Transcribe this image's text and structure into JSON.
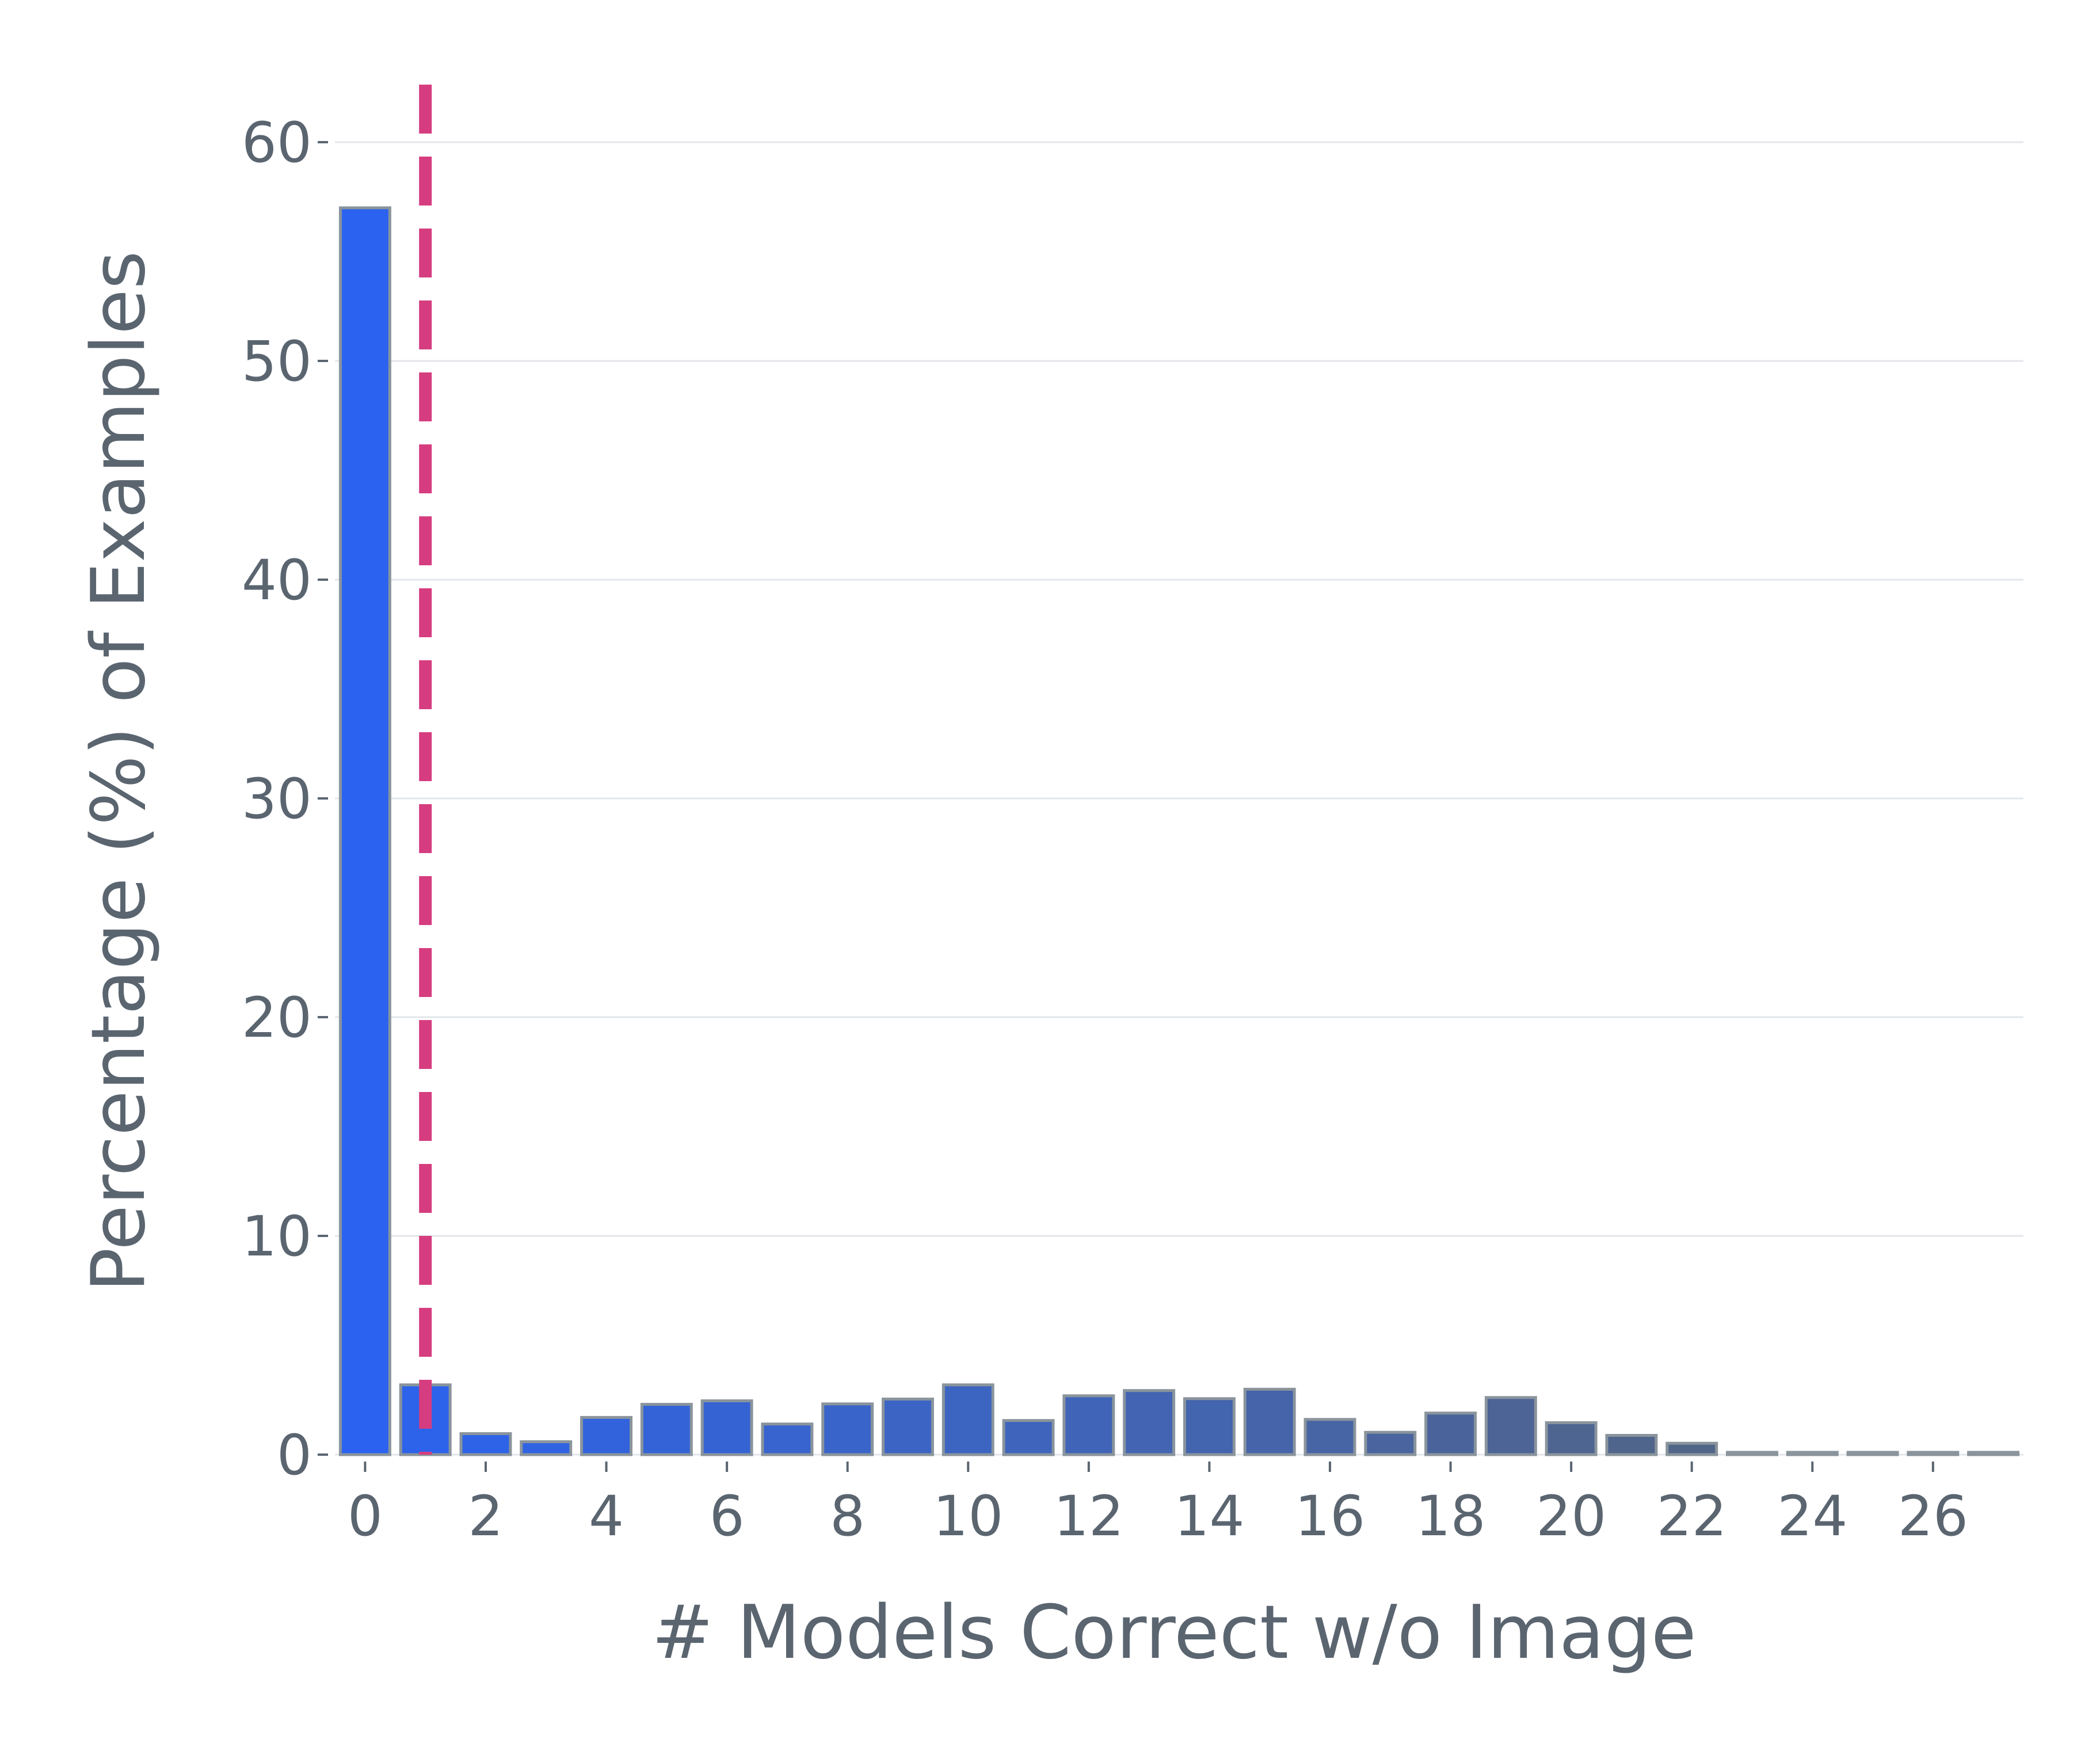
{
  "chart_data": {
    "type": "bar",
    "title": "",
    "xlabel": "# Models Correct w/o Image",
    "ylabel": "Percentage (%) of Examples",
    "categories": [
      0,
      1,
      2,
      3,
      4,
      5,
      6,
      7,
      8,
      9,
      10,
      11,
      12,
      13,
      14,
      15,
      16,
      17,
      18,
      19,
      20,
      21,
      22,
      23,
      24,
      25,
      26,
      27
    ],
    "values": [
      57.0,
      3.19,
      0.96,
      0.59,
      1.7,
      2.3,
      2.46,
      1.4,
      2.32,
      2.54,
      3.19,
      1.56,
      2.69,
      2.93,
      2.56,
      2.99,
      1.61,
      1.02,
      1.9,
      2.61,
      1.46,
      0.88,
      0.52,
      0.04,
      0.02,
      0.02,
      0.02,
      0.02
    ],
    "xticks": [
      0,
      2,
      4,
      6,
      8,
      10,
      12,
      14,
      16,
      18,
      20,
      22,
      24,
      26
    ],
    "yticks": [
      0,
      10,
      20,
      30,
      40,
      50,
      60
    ],
    "xlim": [
      -0.5,
      27.5
    ],
    "ylim": [
      0,
      60
    ],
    "grid": "horizontal",
    "reference_line": {
      "x": 1,
      "style": "dashed",
      "color": "#d63d80"
    },
    "colors": {
      "bar_start": "#2b63f0",
      "bar_end": "#5a6570",
      "bar_edge": "#8a949c",
      "text": "#5a6570",
      "grid": "#e3e6ea"
    }
  }
}
